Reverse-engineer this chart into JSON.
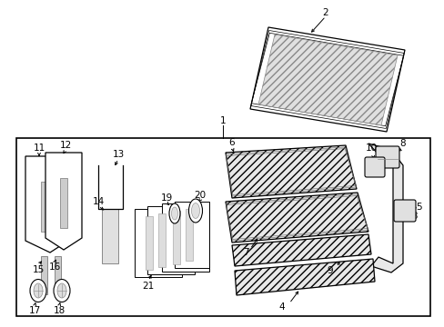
{
  "bg_color": "#ffffff",
  "lc": "#000000",
  "gray_light": "#e8e8e8",
  "gray_med": "#cccccc",
  "gray_dark": "#aaaaaa",
  "hatch": "////"
}
